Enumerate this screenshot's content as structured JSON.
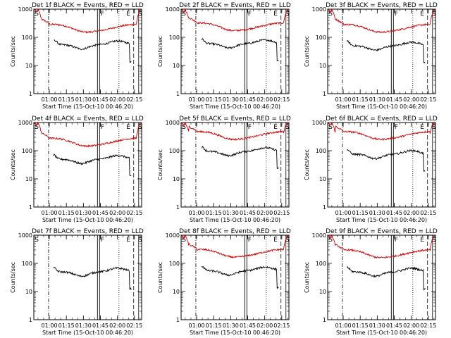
{
  "chart_data": {
    "type": "line",
    "ylabel": "Counts/sec",
    "xlabel": "Start Time (15-Oct-10 00:46:20)",
    "y_scale": "log",
    "ylim": [
      1,
      1000
    ],
    "y_ticks": [
      "1",
      "10",
      "100",
      "1000"
    ],
    "x_ticks": [
      "01:00",
      "01:15",
      "01:30",
      "01:45",
      "02:00",
      "02:15"
    ],
    "x_ticks_minutes_after_00_46_20": [
      13.67,
      28.67,
      43.67,
      58.67,
      73.67,
      88.67
    ],
    "xlim_minutes": [
      0,
      95
    ],
    "series_names": {
      "black": "Events",
      "red": "LLD"
    },
    "colors": {
      "events": "#000000",
      "lld": "#cc0000"
    },
    "markers": {
      "S_at_min": 0.8,
      "E_at_min": 81.5,
      "F_at_min": 57,
      "S2_at_min": 93,
      "dashdot_at_min": 13,
      "dotted_at_min": 75,
      "dashed_at_min": 88
    },
    "panels": [
      {
        "title": "Det 1f BLACK = Events, RED = LLD",
        "lld_level": 230,
        "events_level": 55,
        "events_start": 18,
        "events_end": 86
      },
      {
        "title": "Det 2f BLACK = Events, RED = LLD",
        "lld_level": 260,
        "events_level": 60,
        "events_start": 18,
        "events_end": 86
      },
      {
        "title": "Det 3f BLACK = Events, RED = LLD",
        "lld_level": 230,
        "events_level": 50,
        "events_start": 17,
        "events_end": 86
      },
      {
        "title": "Det 4f BLACK = Events, RED = LLD",
        "lld_level": 220,
        "events_level": 50,
        "events_start": 17,
        "events_end": 86
      },
      {
        "title": "Det 5f BLACK = Events, RED = LLD",
        "lld_level": 380,
        "events_level": 95,
        "events_start": 18,
        "events_end": 86
      },
      {
        "title": "Det 6f BLACK = Events, RED = LLD",
        "lld_level": 380,
        "events_level": 75,
        "events_start": 17,
        "events_end": 86
      },
      {
        "title": "Det 7f BLACK = Events, RED = LLD",
        "lld_level": 0,
        "events_level": 50,
        "events_start": 17,
        "events_end": 86
      },
      {
        "title": "Det 8f BLACK = Events, RED = LLD",
        "lld_level": 250,
        "events_level": 55,
        "events_start": 18,
        "events_end": 86
      },
      {
        "title": "Det 9f BLACK = Events, RED = LLD",
        "lld_level": 240,
        "events_level": 50,
        "events_start": 17,
        "events_end": 86
      }
    ]
  }
}
